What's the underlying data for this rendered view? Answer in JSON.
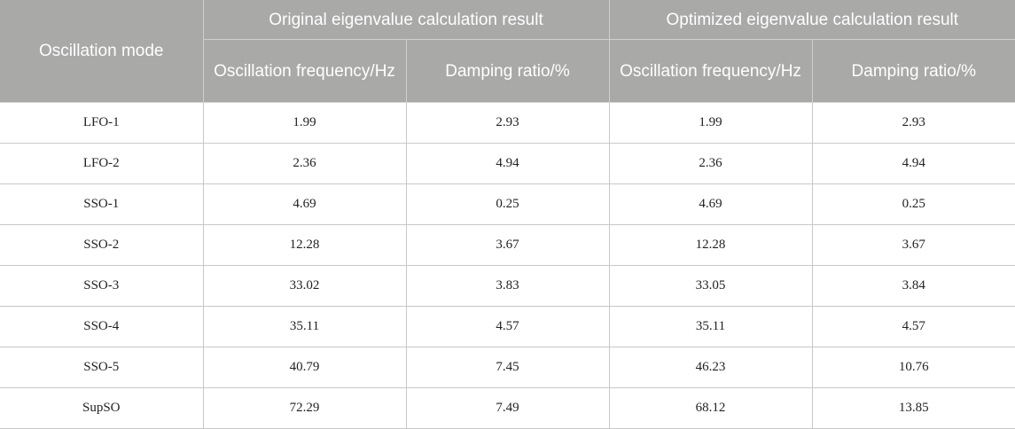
{
  "header": {
    "mode": "Oscillation mode",
    "group_original": "Original eigenvalue calculation result",
    "group_optimized": "Optimized eigenvalue calculation result",
    "freq": "Oscillation frequency/Hz",
    "damp": "Damping ratio/%"
  },
  "rows": [
    {
      "mode": "LFO-1",
      "orig_freq": "1.99",
      "orig_damp": "2.93",
      "opt_freq": "1.99",
      "opt_damp": "2.93"
    },
    {
      "mode": "LFO-2",
      "orig_freq": "2.36",
      "orig_damp": "4.94",
      "opt_freq": "2.36",
      "opt_damp": "4.94"
    },
    {
      "mode": "SSO-1",
      "orig_freq": "4.69",
      "orig_damp": "0.25",
      "opt_freq": "4.69",
      "opt_damp": "0.25"
    },
    {
      "mode": "SSO-2",
      "orig_freq": "12.28",
      "orig_damp": "3.67",
      "opt_freq": "12.28",
      "opt_damp": "3.67"
    },
    {
      "mode": "SSO-3",
      "orig_freq": "33.02",
      "orig_damp": "3.83",
      "opt_freq": "33.05",
      "opt_damp": "3.84"
    },
    {
      "mode": "SSO-4",
      "orig_freq": "35.11",
      "orig_damp": "4.57",
      "opt_freq": "35.11",
      "opt_damp": "4.57"
    },
    {
      "mode": "SSO-5",
      "orig_freq": "40.79",
      "orig_damp": "7.45",
      "opt_freq": "46.23",
      "opt_damp": "10.76"
    },
    {
      "mode": "SupSO",
      "orig_freq": "72.29",
      "orig_damp": "7.49",
      "opt_freq": "68.12",
      "opt_damp": "13.85"
    }
  ],
  "colors": {
    "header_bg": "#a9a9a8",
    "header_text": "#ffffff",
    "grid": "#c8c8c8"
  }
}
